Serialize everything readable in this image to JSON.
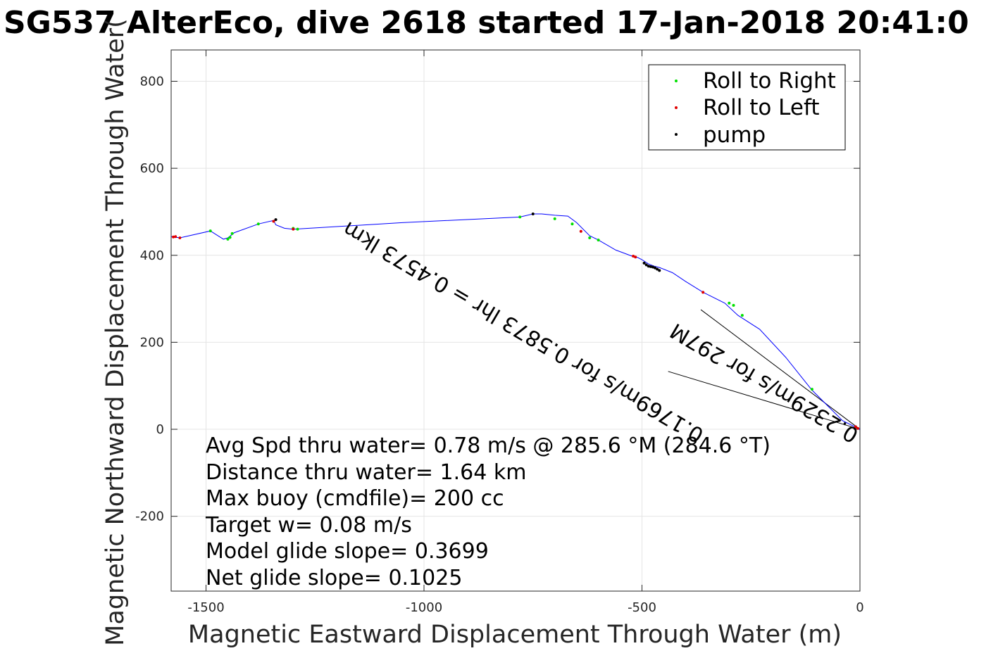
{
  "chart_data": {
    "type": "scatter",
    "title": "SG537 AlterEco, dive 2618 started 17-Jan-2018 20:41:0",
    "xlabel": "Magnetic Eastward Displacement Through Water (m)",
    "ylabel": "Magnetic Northward Displacement Through Water(",
    "xlim": [
      -1580,
      0
    ],
    "ylim": [
      -372,
      872
    ],
    "x_ticks": [
      -1500,
      -1000,
      -500,
      0
    ],
    "x_tick_labels": [
      "-1500",
      "-1000",
      "-500",
      "0"
    ],
    "y_ticks": [
      -200,
      0,
      200,
      400,
      600,
      800
    ],
    "y_tick_labels": [
      "-200",
      "0",
      "200",
      "400",
      "600",
      "800"
    ],
    "grid": true,
    "legend_position": "top-right",
    "track": {
      "color": "#0000ff",
      "x": [
        0,
        -10,
        -40,
        -110,
        -170,
        -230,
        -280,
        -310,
        -360,
        -400,
        -430,
        -460,
        -472,
        -485,
        -500,
        -510,
        -520,
        -560,
        -600,
        -620,
        -650,
        -670,
        -700,
        -730,
        -750,
        -780,
        -1050,
        -1300,
        -1320,
        -1340,
        -1345,
        -1380,
        -1435,
        -1450,
        -1460,
        -1490,
        -1560,
        -1580
      ],
      "y": [
        0,
        5,
        20,
        90,
        165,
        230,
        262,
        290,
        315,
        340,
        360,
        372,
        375,
        380,
        390,
        395,
        397,
        412,
        435,
        445,
        475,
        490,
        492,
        495,
        495,
        488,
        475,
        460,
        462,
        470,
        480,
        472,
        452,
        440,
        437,
        456,
        440,
        443
      ]
    },
    "series": [
      {
        "name": "Roll to Right",
        "color": "#00e000",
        "x": [
          -300,
          -290,
          -270,
          -110,
          -620,
          -660,
          -700,
          -780,
          -1290,
          -1300,
          -1380,
          -1440,
          -1445,
          -1450,
          -1490,
          -600
        ],
        "y": [
          290,
          285,
          262,
          92,
          440,
          472,
          484,
          488,
          460,
          462,
          472,
          450,
          441,
          437,
          456,
          435
        ]
      },
      {
        "name": "Roll to Left",
        "color": "#e00000",
        "x": [
          -5,
          -10,
          -360,
          -520,
          -515,
          -640,
          -1560,
          -1570,
          -1575,
          -1345,
          -1300
        ],
        "y": [
          2,
          6,
          315,
          398,
          396,
          455,
          440,
          443,
          442,
          478,
          460
        ]
      },
      {
        "name": "pump",
        "color": "#000000",
        "x": [
          -495,
          -490,
          -485,
          -480,
          -475,
          -470,
          -465,
          -460,
          -750,
          -1340
        ],
        "y": [
          382,
          378,
          375,
          374,
          373,
          371,
          368,
          365,
          495,
          482
        ]
      }
    ],
    "track_labels": [
      {
        "text": "0.2329m/s for 297M"
      },
      {
        "text": "0.1769m/s for 0.5873 lhr = 0.4573 lkm"
      }
    ],
    "reference_lines": [
      {
        "x": [
          0,
          -365
        ],
        "y": [
          0,
          275
        ]
      },
      {
        "x": [
          0,
          -440
        ],
        "y": [
          0,
          133
        ]
      }
    ],
    "annotations": [
      "Avg Spd thru water=  0.78 m/s @ 285.6 °M (284.6 °T)",
      "Distance thru water=  1.64 km",
      "Max buoy (cmdfile)= 200 cc",
      "Target w= 0.08 m/s",
      "Model glide slope= 0.3699",
      "Net glide slope= 0.1025"
    ]
  }
}
